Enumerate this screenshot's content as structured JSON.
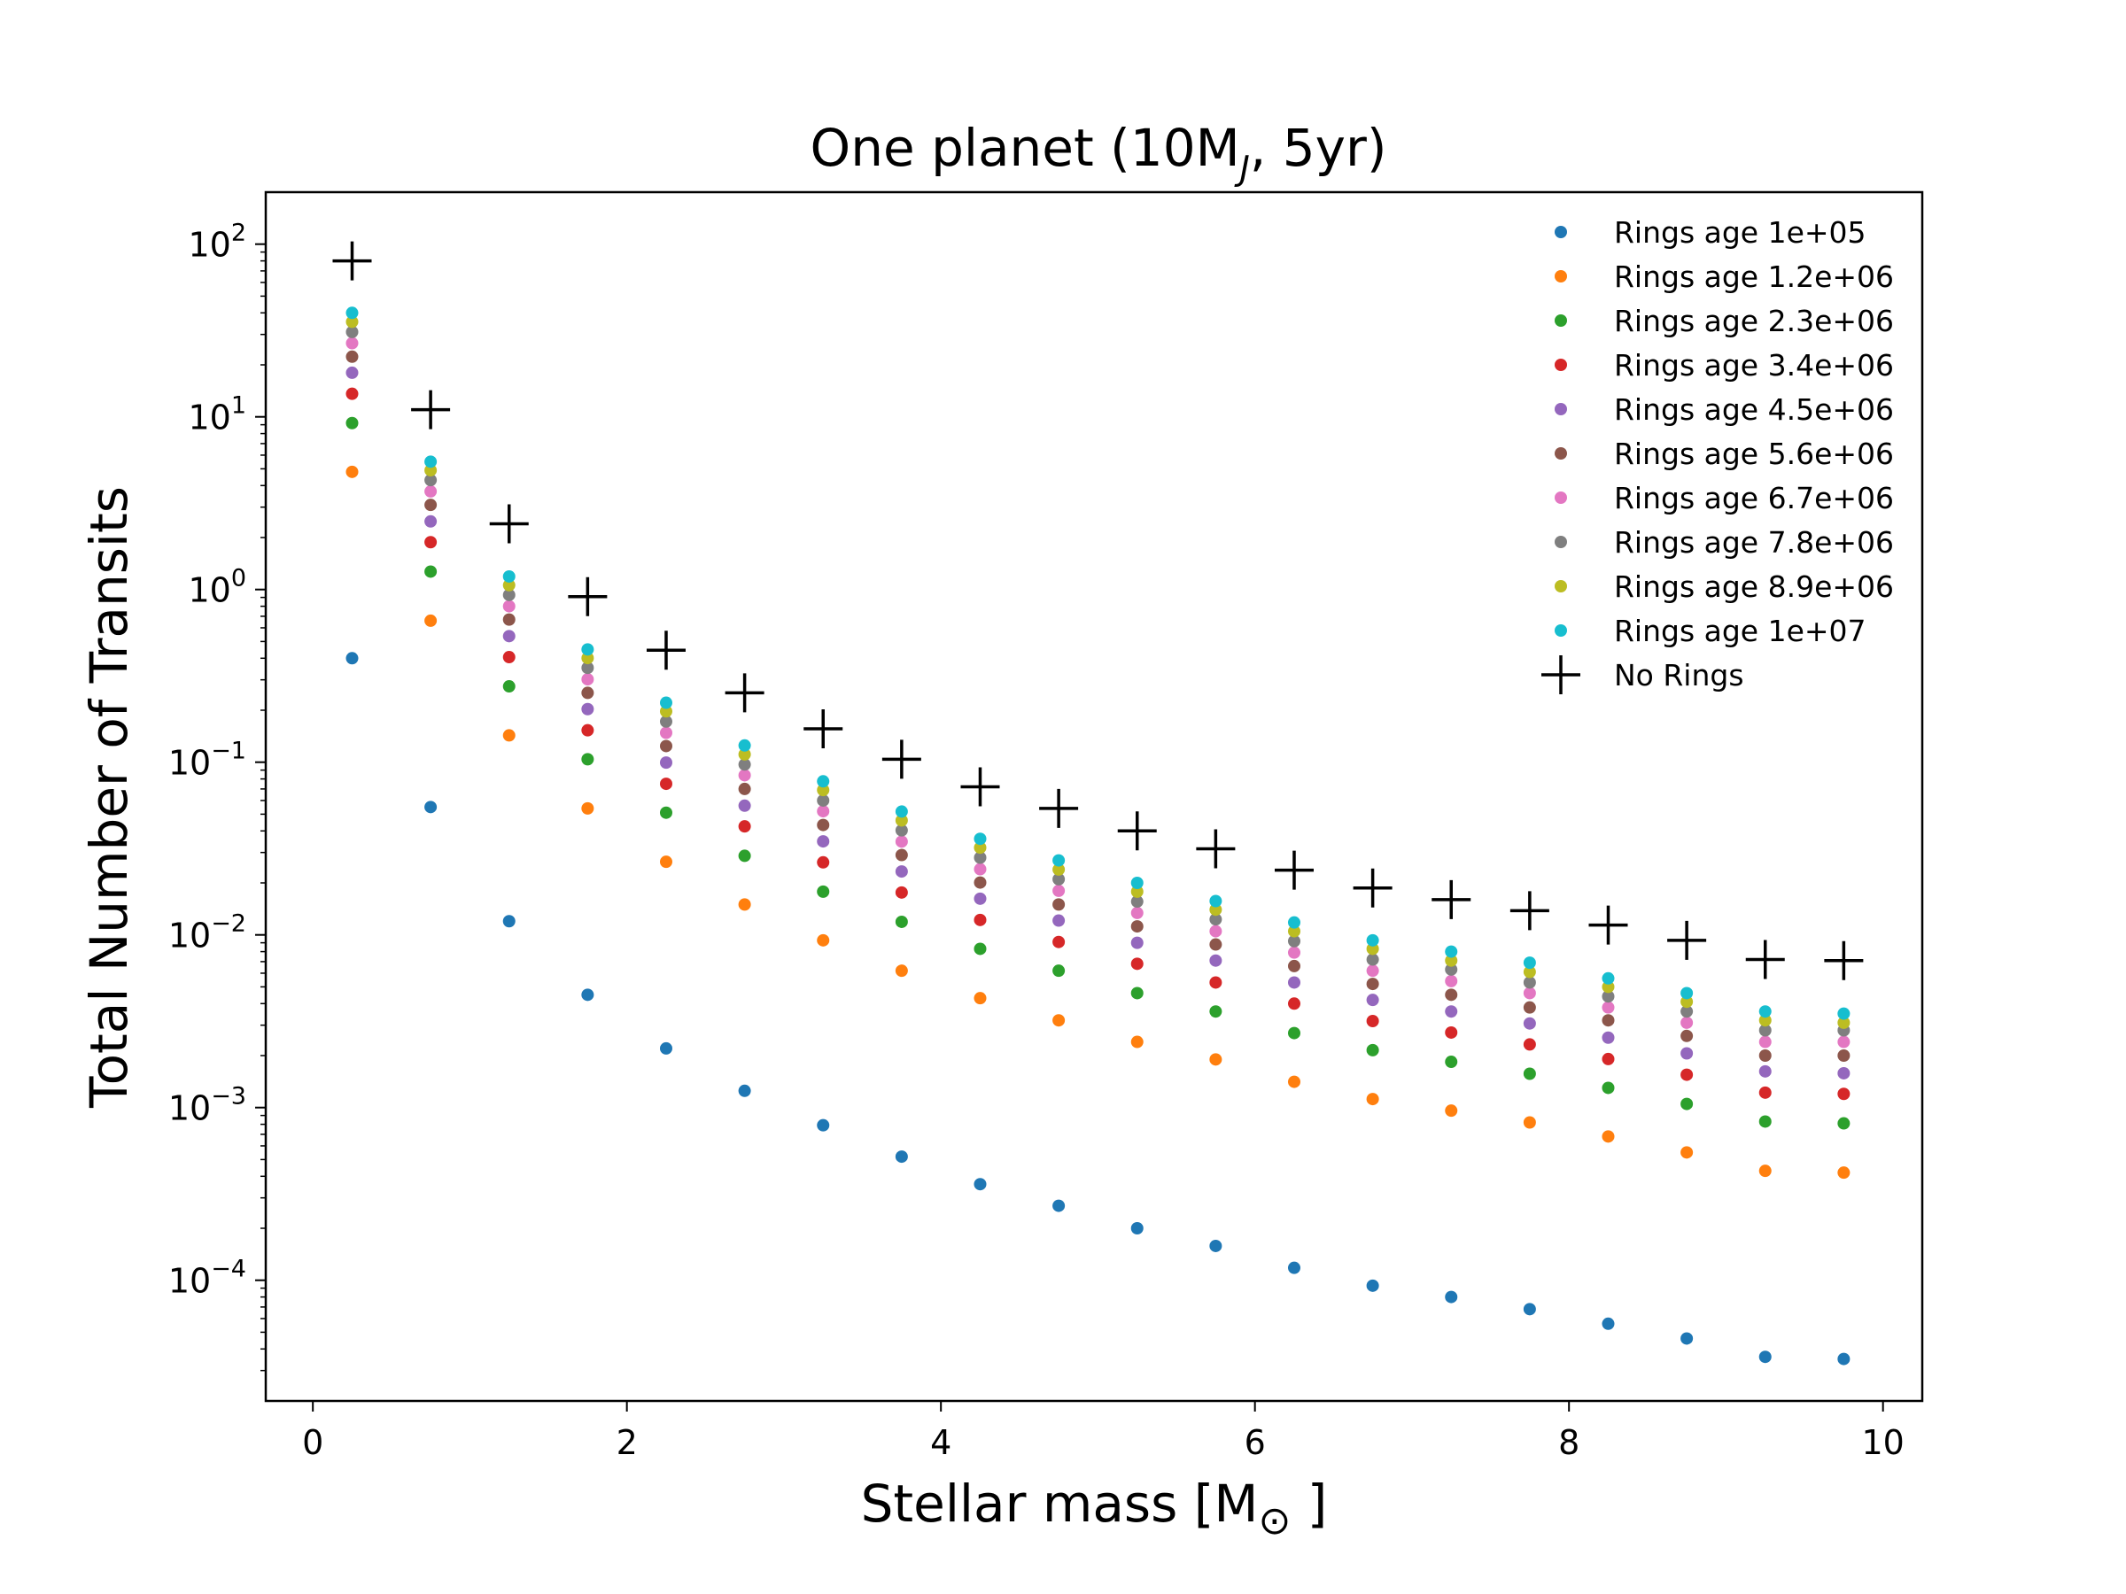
{
  "chart_data": {
    "type": "scatter",
    "title": "One planet (10M",
    "title_sub": "J",
    "title_end": ", 5yr)",
    "xlabel": "Stellar mass [M",
    "xlabel_symbol": "⊙",
    "xlabel_end": " ]",
    "ylabel": "Total Number of Transits",
    "xscale": "linear",
    "yscale": "log",
    "xlim": [
      -0.3,
      10.25
    ],
    "ylim": [
      2e-05,
      200
    ],
    "xticks": [
      0,
      2,
      4,
      6,
      8,
      10
    ],
    "xtick_labels": [
      "0",
      "2",
      "4",
      "6",
      "8",
      "10"
    ],
    "yticks": [
      0.0001,
      0.001,
      0.01,
      0.1,
      1,
      10,
      100
    ],
    "ytick_base": [
      "10",
      "10",
      "10",
      "10",
      "10",
      "10",
      "10"
    ],
    "ytick_exp": [
      "−4",
      "−3",
      "−2",
      "−1",
      "0",
      "1",
      "2"
    ],
    "grid": false,
    "legend_position": "top-right",
    "x": [
      0.25,
      0.75,
      1.25,
      1.75,
      2.25,
      2.75,
      3.25,
      3.75,
      4.25,
      4.75,
      5.25,
      5.75,
      6.25,
      6.75,
      7.25,
      7.75,
      8.25,
      8.75,
      9.25,
      9.75
    ],
    "series": [
      {
        "name": "Rings age 1e+05",
        "marker": "dot",
        "color": "#1f77b4",
        "values": [
          0.4,
          0.055,
          0.012,
          0.0045,
          0.0022,
          0.00125,
          0.00079,
          0.00052,
          0.00036,
          0.00027,
          0.0002,
          0.000158,
          0.000118,
          9.3e-05,
          8e-05,
          6.8e-05,
          5.6e-05,
          4.6e-05,
          3.6e-05,
          3.5e-05
        ]
      },
      {
        "name": "Rings age 1.2e+06",
        "marker": "dot",
        "color": "#ff7f0e",
        "values": [
          4.8,
          0.66,
          0.143,
          0.054,
          0.0265,
          0.015,
          0.0093,
          0.0062,
          0.0043,
          0.0032,
          0.0024,
          0.0019,
          0.00141,
          0.00112,
          0.00096,
          0.00082,
          0.00068,
          0.00055,
          0.00043,
          0.00042
        ]
      },
      {
        "name": "Rings age 2.3e+06",
        "marker": "dot",
        "color": "#2ca02c",
        "values": [
          9.2,
          1.27,
          0.275,
          0.104,
          0.051,
          0.0287,
          0.0178,
          0.0119,
          0.0083,
          0.0062,
          0.0046,
          0.0036,
          0.0027,
          0.00215,
          0.00184,
          0.00157,
          0.0013,
          0.00105,
          0.00083,
          0.00081
        ]
      },
      {
        "name": "Rings age 3.4e+06",
        "marker": "dot",
        "color": "#d62728",
        "values": [
          13.6,
          1.88,
          0.406,
          0.153,
          0.075,
          0.0425,
          0.0263,
          0.0176,
          0.0122,
          0.0091,
          0.0068,
          0.0053,
          0.004,
          0.00317,
          0.00272,
          0.00232,
          0.00191,
          0.00155,
          0.00122,
          0.0012
        ]
      },
      {
        "name": "Rings age 4.5e+06",
        "marker": "dot",
        "color": "#9467bd",
        "values": [
          18,
          2.48,
          0.537,
          0.203,
          0.0995,
          0.056,
          0.0348,
          0.0233,
          0.0162,
          0.0121,
          0.009,
          0.0071,
          0.0053,
          0.0042,
          0.0036,
          0.00307,
          0.00254,
          0.00206,
          0.00162,
          0.00158
        ]
      },
      {
        "name": "Rings age 5.6e+06",
        "marker": "dot",
        "color": "#8c564b",
        "values": [
          22.3,
          3.09,
          0.67,
          0.252,
          0.124,
          0.07,
          0.0433,
          0.029,
          0.0201,
          0.015,
          0.0112,
          0.0088,
          0.0066,
          0.0052,
          0.0045,
          0.0038,
          0.0032,
          0.0026,
          0.002,
          0.002
        ]
      },
      {
        "name": "Rings age 6.7e+06",
        "marker": "dot",
        "color": "#e377c2",
        "values": [
          26.7,
          3.7,
          0.8,
          0.302,
          0.148,
          0.084,
          0.052,
          0.0347,
          0.024,
          0.018,
          0.0134,
          0.0105,
          0.0079,
          0.0062,
          0.0054,
          0.0046,
          0.0038,
          0.0031,
          0.0024,
          0.0024
        ]
      },
      {
        "name": "Rings age 7.8e+06",
        "marker": "dot",
        "color": "#7f7f7f",
        "values": [
          31,
          4.3,
          0.93,
          0.352,
          0.172,
          0.097,
          0.06,
          0.0403,
          0.028,
          0.021,
          0.0156,
          0.0123,
          0.0092,
          0.0072,
          0.0063,
          0.0053,
          0.0044,
          0.0036,
          0.0028,
          0.0028
        ]
      },
      {
        "name": "Rings age 8.9e+06",
        "marker": "dot",
        "color": "#bcbd22",
        "values": [
          35.5,
          4.9,
          1.06,
          0.401,
          0.197,
          0.111,
          0.069,
          0.046,
          0.032,
          0.0239,
          0.0178,
          0.014,
          0.0105,
          0.0083,
          0.0071,
          0.0061,
          0.005,
          0.0041,
          0.0032,
          0.0031
        ]
      },
      {
        "name": "Rings age 1e+07",
        "marker": "dot",
        "color": "#17becf",
        "values": [
          40,
          5.5,
          1.19,
          0.45,
          0.221,
          0.125,
          0.0775,
          0.0518,
          0.036,
          0.027,
          0.02,
          0.0157,
          0.0118,
          0.0093,
          0.008,
          0.0069,
          0.0056,
          0.0046,
          0.0036,
          0.0035
        ]
      },
      {
        "name": "No Rings",
        "marker": "plus",
        "color": "#000000",
        "values": [
          80,
          11,
          2.4,
          0.91,
          0.445,
          0.252,
          0.156,
          0.104,
          0.072,
          0.054,
          0.04,
          0.0315,
          0.0237,
          0.0187,
          0.016,
          0.0138,
          0.0114,
          0.0093,
          0.0072,
          0.0071
        ]
      }
    ]
  }
}
